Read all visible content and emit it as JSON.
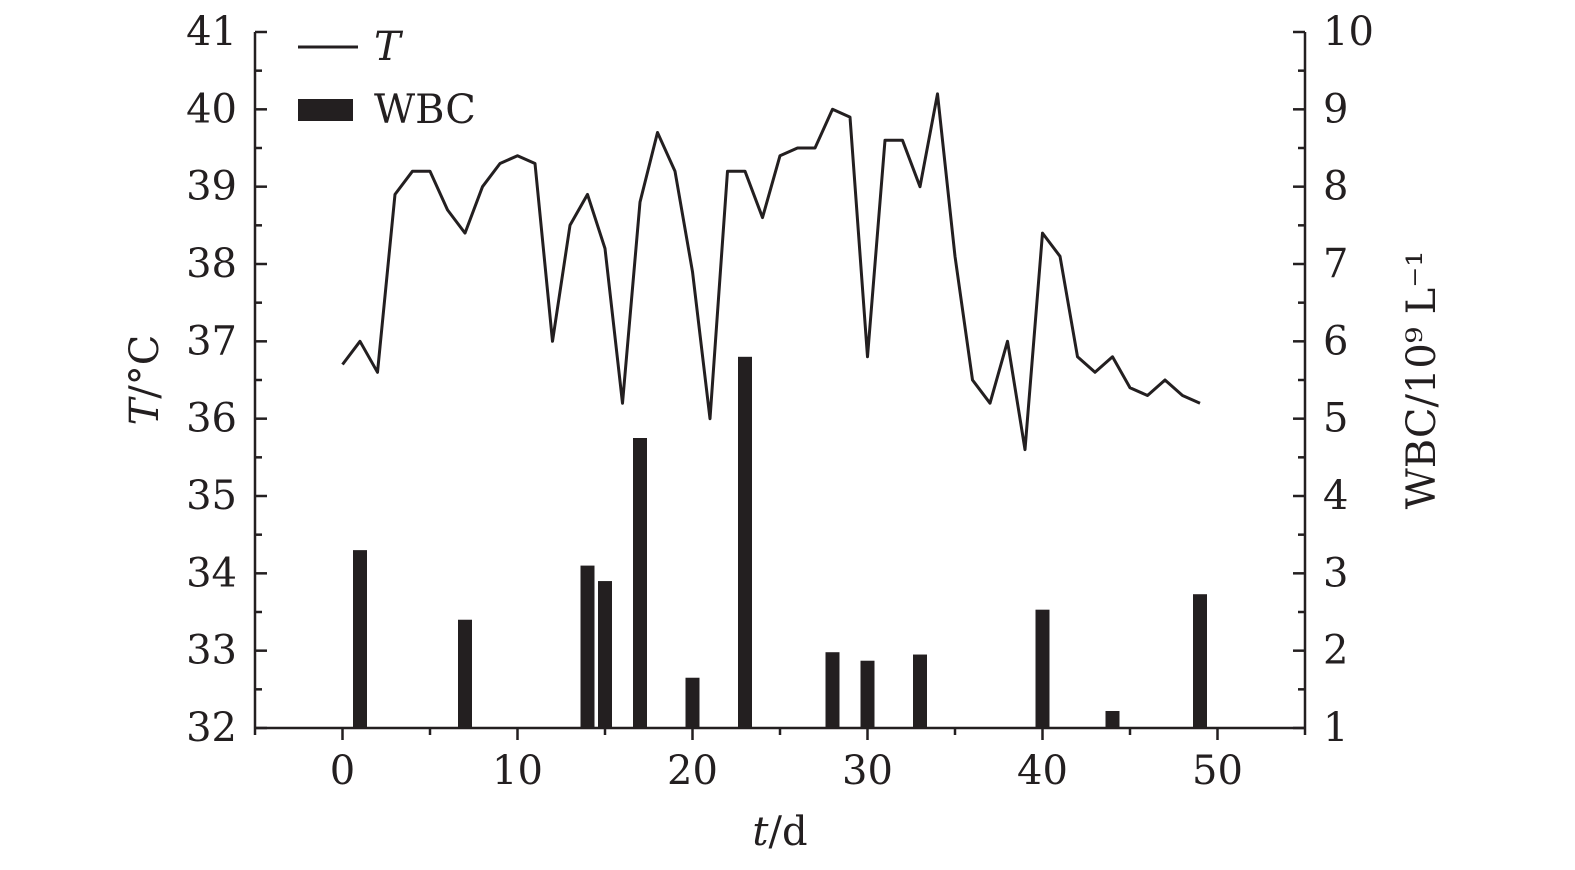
{
  "chart_data": {
    "type": "line+bar",
    "xlabel_italic": "t",
    "xlabel_rest": "/d",
    "ylabel_left_italic": "T",
    "ylabel_left_rest": "/°C",
    "ylabel_right": "WBC/10⁹ L⁻¹",
    "xlim": [
      -5,
      55
    ],
    "ylim_left": [
      32,
      41
    ],
    "ylim_right": [
      1,
      10
    ],
    "x_ticks": [
      0,
      10,
      20,
      30,
      40,
      50
    ],
    "y_left_ticks": [
      32,
      33,
      34,
      35,
      36,
      37,
      38,
      39,
      40,
      41
    ],
    "y_right_ticks": [
      1,
      2,
      3,
      4,
      5,
      6,
      7,
      8,
      9,
      10
    ],
    "legend": {
      "position": "top-left",
      "entries": [
        {
          "name": "T",
          "marker": "line"
        },
        {
          "name": "WBC",
          "marker": "bar"
        }
      ]
    },
    "series": [
      {
        "name": "T",
        "type": "line",
        "axis": "left",
        "color": "#231f20",
        "x": [
          0,
          1,
          2,
          3,
          4,
          5,
          6,
          7,
          8,
          9,
          10,
          11,
          12,
          13,
          14,
          15,
          16,
          17,
          18,
          19,
          20,
          21,
          22,
          23,
          24,
          25,
          26,
          27,
          28,
          29,
          30,
          31,
          32,
          33,
          34,
          35,
          36,
          37,
          38,
          39,
          40,
          41,
          42,
          43,
          44,
          45,
          46,
          47,
          48,
          49
        ],
        "values": [
          36.7,
          37.0,
          36.6,
          38.9,
          39.2,
          39.2,
          38.7,
          38.4,
          39.0,
          39.3,
          39.4,
          39.3,
          37.0,
          38.5,
          38.9,
          38.2,
          36.2,
          38.8,
          39.7,
          39.2,
          37.9,
          36.0,
          39.2,
          39.2,
          38.6,
          39.4,
          39.5,
          39.5,
          40.0,
          39.9,
          36.8,
          39.6,
          39.6,
          39.0,
          40.2,
          38.1,
          36.5,
          36.2,
          37.0,
          35.6,
          38.4,
          38.1,
          36.8,
          36.6,
          36.8,
          36.4,
          36.3,
          36.5,
          36.3,
          36.2
        ]
      },
      {
        "name": "WBC",
        "type": "bar",
        "axis": "right",
        "color": "#231f20",
        "x": [
          1,
          7,
          14,
          15,
          17,
          20,
          23,
          28,
          30,
          33,
          40,
          44,
          49
        ],
        "values": [
          3.3,
          2.4,
          3.1,
          2.9,
          4.75,
          1.65,
          5.8,
          1.98,
          1.87,
          1.95,
          2.53,
          1.22,
          2.73
        ]
      }
    ]
  }
}
